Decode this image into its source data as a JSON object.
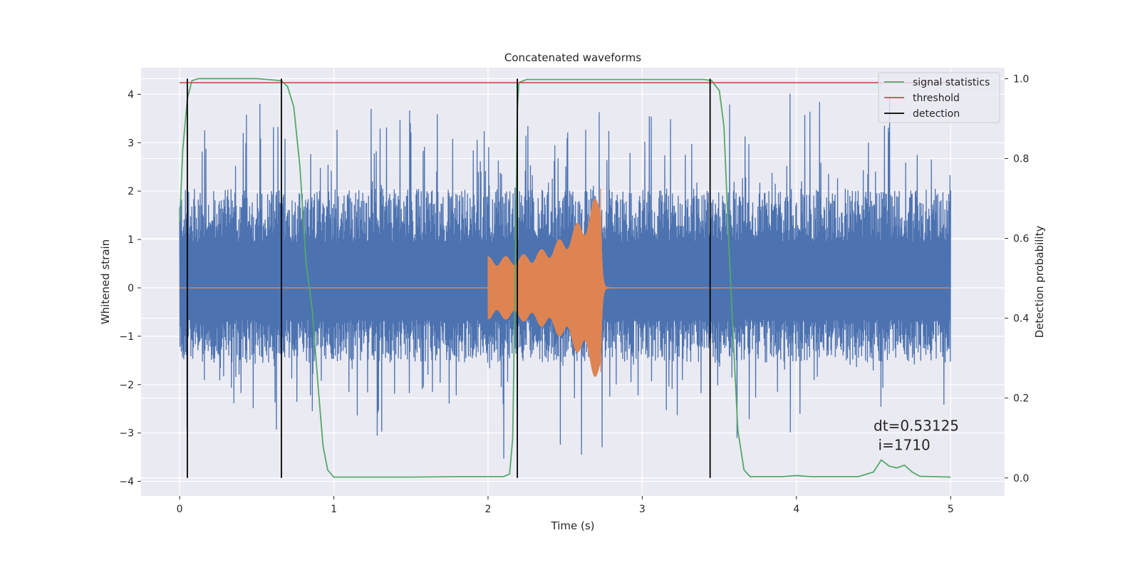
{
  "chart_data": {
    "type": "line",
    "title": "Concatenated waveforms",
    "xlabel": "Time (s)",
    "ylabel_left": "Whitened strain",
    "ylabel_right": "Detection probability",
    "xlim": [
      -0.25,
      5.35
    ],
    "ylim_left": [
      -4.3,
      4.55
    ],
    "ylim_right": [
      -0.045,
      1.0275
    ],
    "x_ticks": [
      0,
      1,
      2,
      3,
      4,
      5
    ],
    "y_left_ticks": [
      -4,
      -3,
      -2,
      -1,
      0,
      1,
      2,
      3,
      4
    ],
    "y_right_ticks": [
      0.0,
      0.2,
      0.4,
      0.6,
      0.8,
      1.0
    ],
    "y_right_tick_labels": [
      "0.0",
      "0.2",
      "0.4",
      "0.6",
      "0.8",
      "1.0"
    ],
    "grid": true,
    "legend_position": "top-right",
    "series": [
      {
        "name": "",
        "axis": "left",
        "kind": "noise",
        "color": "#4c72b0",
        "x_range": [
          0,
          5
        ],
        "baseline_band": [
          -0.65,
          0.95
        ],
        "peak_max": 4.2,
        "trough_min": -3.9
      },
      {
        "name": "",
        "axis": "left",
        "kind": "chirp",
        "color": "#dd8452",
        "x_range": [
          2.0,
          2.73
        ],
        "start_amplitude": 0.65,
        "peak_amplitude": 2.05
      },
      {
        "name": "signal statistics",
        "axis": "right",
        "color": "#55a868",
        "points": [
          [
            0.0,
            0.64
          ],
          [
            0.02,
            0.82
          ],
          [
            0.05,
            0.95
          ],
          [
            0.08,
            0.995
          ],
          [
            0.12,
            1.0
          ],
          [
            0.5,
            1.0
          ],
          [
            0.6,
            0.997
          ],
          [
            0.66,
            0.995
          ],
          [
            0.7,
            0.98
          ],
          [
            0.74,
            0.93
          ],
          [
            0.78,
            0.78
          ],
          [
            0.8,
            0.66
          ],
          [
            0.82,
            0.54
          ],
          [
            0.86,
            0.42
          ],
          [
            0.9,
            0.22
          ],
          [
            0.93,
            0.08
          ],
          [
            0.96,
            0.02
          ],
          [
            1.0,
            0.002
          ],
          [
            1.5,
            0.002
          ],
          [
            1.8,
            0.003
          ],
          [
            2.1,
            0.003
          ],
          [
            2.14,
            0.01
          ],
          [
            2.16,
            0.1
          ],
          [
            2.18,
            0.6
          ],
          [
            2.19,
            0.92
          ],
          [
            2.2,
            0.99
          ],
          [
            2.25,
            0.998
          ],
          [
            3.4,
            0.998
          ],
          [
            3.45,
            0.995
          ],
          [
            3.5,
            0.97
          ],
          [
            3.53,
            0.88
          ],
          [
            3.56,
            0.6
          ],
          [
            3.59,
            0.35
          ],
          [
            3.62,
            0.12
          ],
          [
            3.66,
            0.02
          ],
          [
            3.7,
            0.003
          ],
          [
            3.9,
            0.003
          ],
          [
            4.0,
            0.006
          ],
          [
            4.1,
            0.003
          ],
          [
            4.4,
            0.003
          ],
          [
            4.5,
            0.015
          ],
          [
            4.55,
            0.045
          ],
          [
            4.6,
            0.03
          ],
          [
            4.65,
            0.025
          ],
          [
            4.7,
            0.032
          ],
          [
            4.75,
            0.015
          ],
          [
            4.8,
            0.004
          ],
          [
            5.0,
            0.002
          ]
        ]
      },
      {
        "name": "threshold",
        "axis": "right",
        "color": "#c44e52",
        "x": [
          0,
          5
        ],
        "values": [
          0.99,
          0.99
        ]
      },
      {
        "name": "detection",
        "axis": "right",
        "color": "#000000",
        "vertical_lines": [
          0.05,
          0.66,
          2.19,
          3.44
        ],
        "y_span": [
          0,
          1.0
        ]
      }
    ],
    "annotations": [
      {
        "text": "dt=0.53125",
        "x": 4.5,
        "y": -2.95
      },
      {
        "text": "i=1710",
        "x": 4.53,
        "y": -3.35
      }
    ]
  }
}
